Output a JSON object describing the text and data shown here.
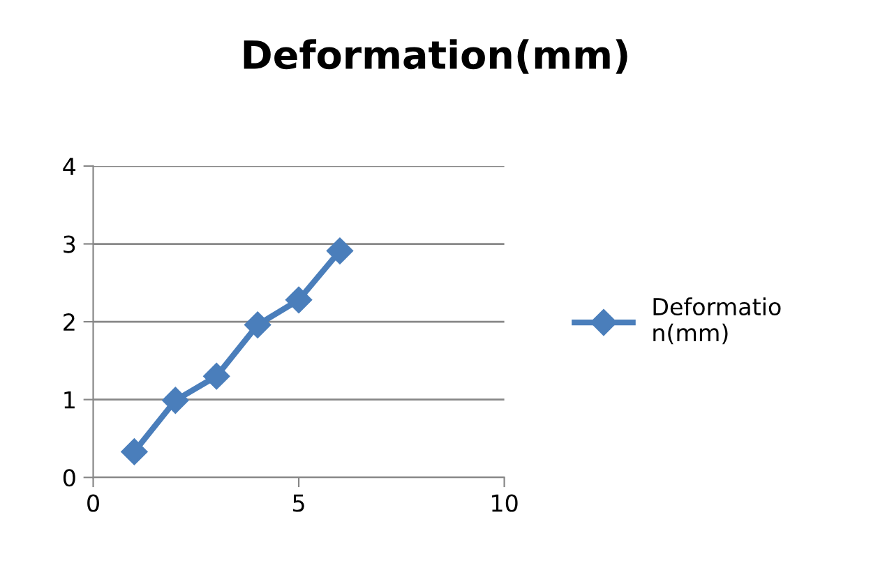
{
  "chart_data": {
    "type": "line",
    "title": "Deformation(mm)",
    "x": [
      1,
      2,
      3,
      4,
      5,
      6
    ],
    "series": [
      {
        "name": "Deformation(mm)",
        "color": "#4a7ebb",
        "values": [
          0.33,
          0.99,
          1.3,
          1.96,
          2.28,
          2.91
        ]
      }
    ],
    "xlim": [
      0,
      10
    ],
    "xticks": [
      0,
      5,
      10
    ],
    "ylim": [
      0,
      4
    ],
    "yticks": [
      0,
      1,
      2,
      3,
      4
    ],
    "grid": "y",
    "legend": "right",
    "marker": "diamond",
    "line_style": "solid"
  }
}
